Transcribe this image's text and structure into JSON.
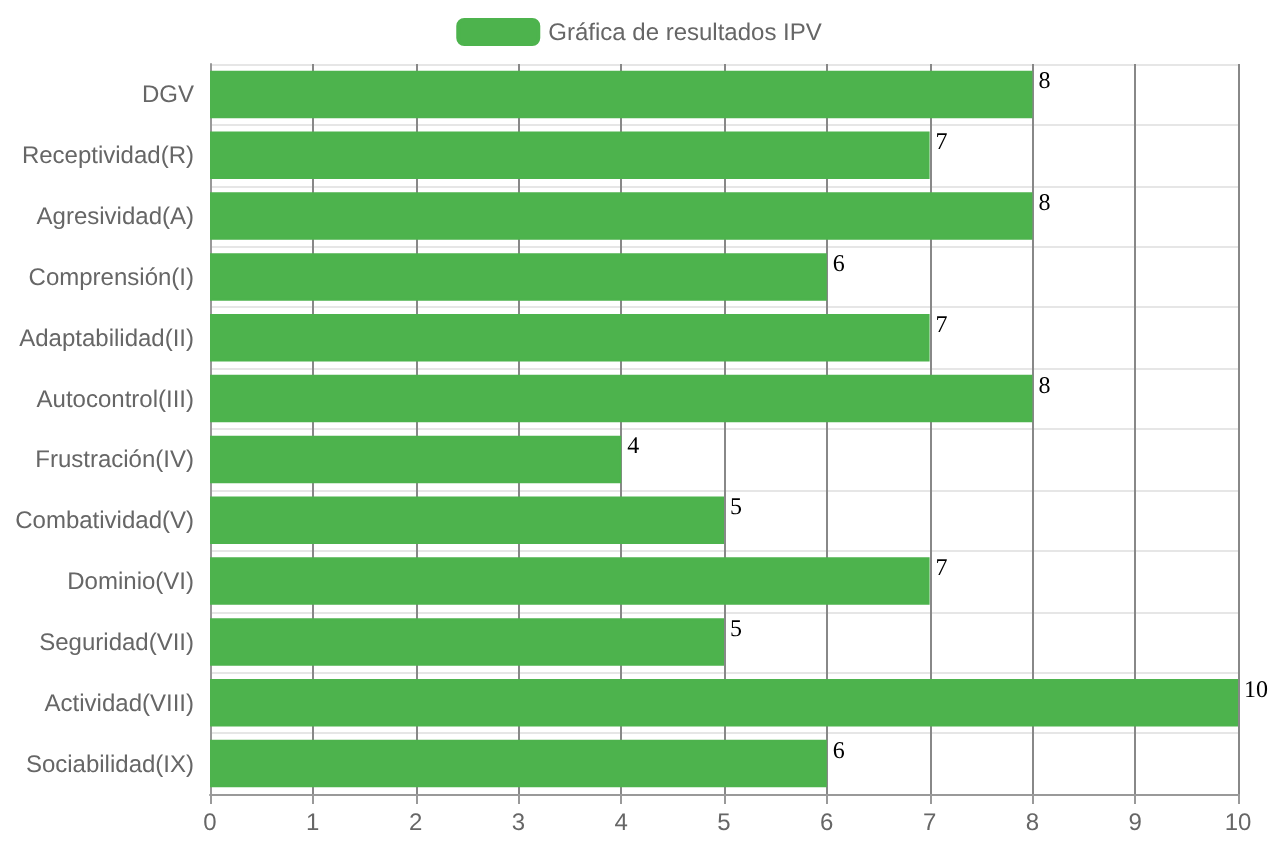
{
  "chart_data": {
    "type": "bar",
    "orientation": "horizontal",
    "categories": [
      "DGV",
      "Receptividad(R)",
      "Agresividad(A)",
      "Comprensión(I)",
      "Adaptabilidad(II)",
      "Autocontrol(III)",
      "Frustración(IV)",
      "Combatividad(V)",
      "Dominio(VI)",
      "Seguridad(VII)",
      "Actividad(VIII)",
      "Sociabilidad(IX)"
    ],
    "series": [
      {
        "name": "Gráfica de resultados IPV",
        "color": "#4db34d",
        "values": [
          8,
          7,
          8,
          6,
          7,
          8,
          4,
          5,
          7,
          5,
          10,
          6
        ]
      }
    ],
    "xlim": [
      0,
      10
    ],
    "xticks": [
      0,
      1,
      2,
      3,
      4,
      5,
      6,
      7,
      8,
      9,
      10
    ],
    "grid": true,
    "legend": "top",
    "data_labels": true
  }
}
